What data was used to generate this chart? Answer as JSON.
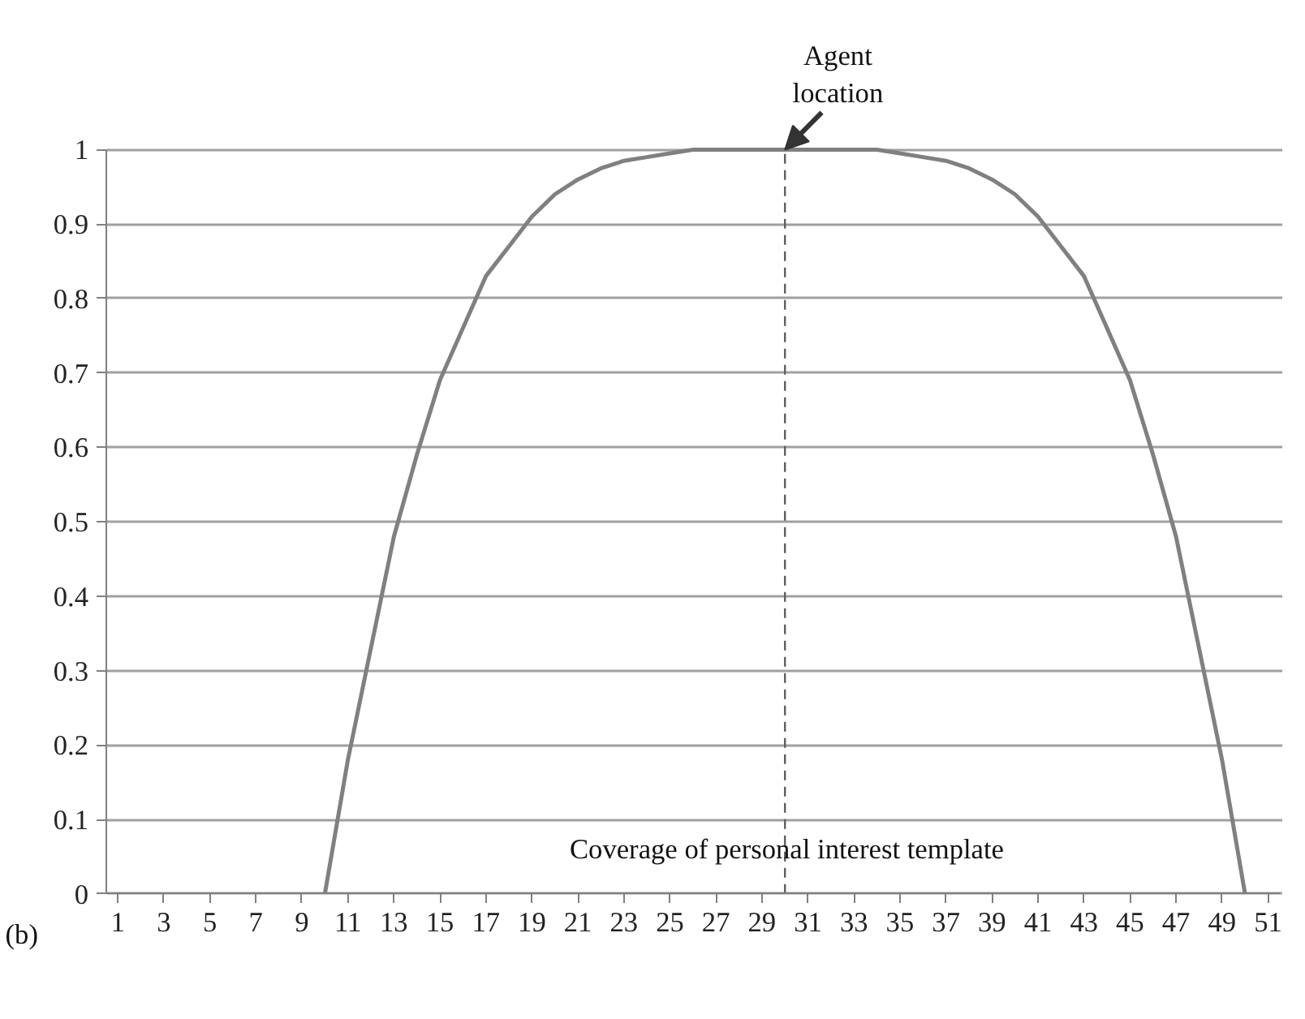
{
  "chart_data": {
    "type": "line",
    "x": [
      10,
      11,
      12,
      13,
      14,
      15,
      16,
      17,
      18,
      19,
      20,
      21,
      22,
      23,
      24,
      25,
      26,
      27,
      28,
      29,
      30,
      31,
      32,
      33,
      34,
      35,
      36,
      37,
      38,
      39,
      40,
      41,
      42,
      43,
      44,
      45,
      46,
      47,
      48,
      49,
      50
    ],
    "series": [
      {
        "color": "#808080",
        "values": [
          0,
          0.18,
          0.33,
          0.48,
          0.59,
          0.69,
          0.76,
          0.83,
          0.87,
          0.91,
          0.94,
          0.96,
          0.975,
          0.985,
          0.99,
          0.995,
          1,
          1,
          1,
          1,
          1,
          1,
          1,
          1,
          1,
          0.995,
          0.99,
          0.985,
          0.975,
          0.96,
          0.94,
          0.91,
          0.87,
          0.83,
          0.76,
          0.69,
          0.59,
          0.48,
          0.33,
          0.18,
          0
        ]
      }
    ],
    "xlim": [
      0.5,
      51.5
    ],
    "ylim": [
      0,
      1
    ],
    "xticks": [
      1,
      3,
      5,
      7,
      9,
      11,
      13,
      15,
      17,
      19,
      21,
      23,
      25,
      27,
      29,
      31,
      33,
      35,
      37,
      39,
      41,
      43,
      45,
      47,
      49,
      51
    ],
    "yticks": [
      0,
      {
        "value": 0.1,
        "label": "0.1"
      },
      {
        "value": 0.2,
        "label": "0.2"
      },
      {
        "value": 0.3,
        "label": "0.3"
      },
      {
        "value": 0.4,
        "label": "0.4"
      },
      {
        "value": 0.5,
        "label": "0.5"
      },
      {
        "value": 0.6,
        "label": "0.6"
      },
      {
        "value": 0.7,
        "label": "0.7"
      },
      {
        "value": 0.8,
        "label": "0.8"
      },
      {
        "value": 0.9,
        "label": "0.9"
      },
      1
    ],
    "grid": "y",
    "marker": "none",
    "line_style": "solid",
    "ref_lines": [
      {
        "axis": "x",
        "value": 30,
        "color": "#606060",
        "line_style": "dashed"
      }
    ],
    "annotations": [
      {
        "text": "Agent location",
        "x": 30,
        "y": 1
      },
      "(b)",
      "Coverage of personal interest template"
    ]
  }
}
